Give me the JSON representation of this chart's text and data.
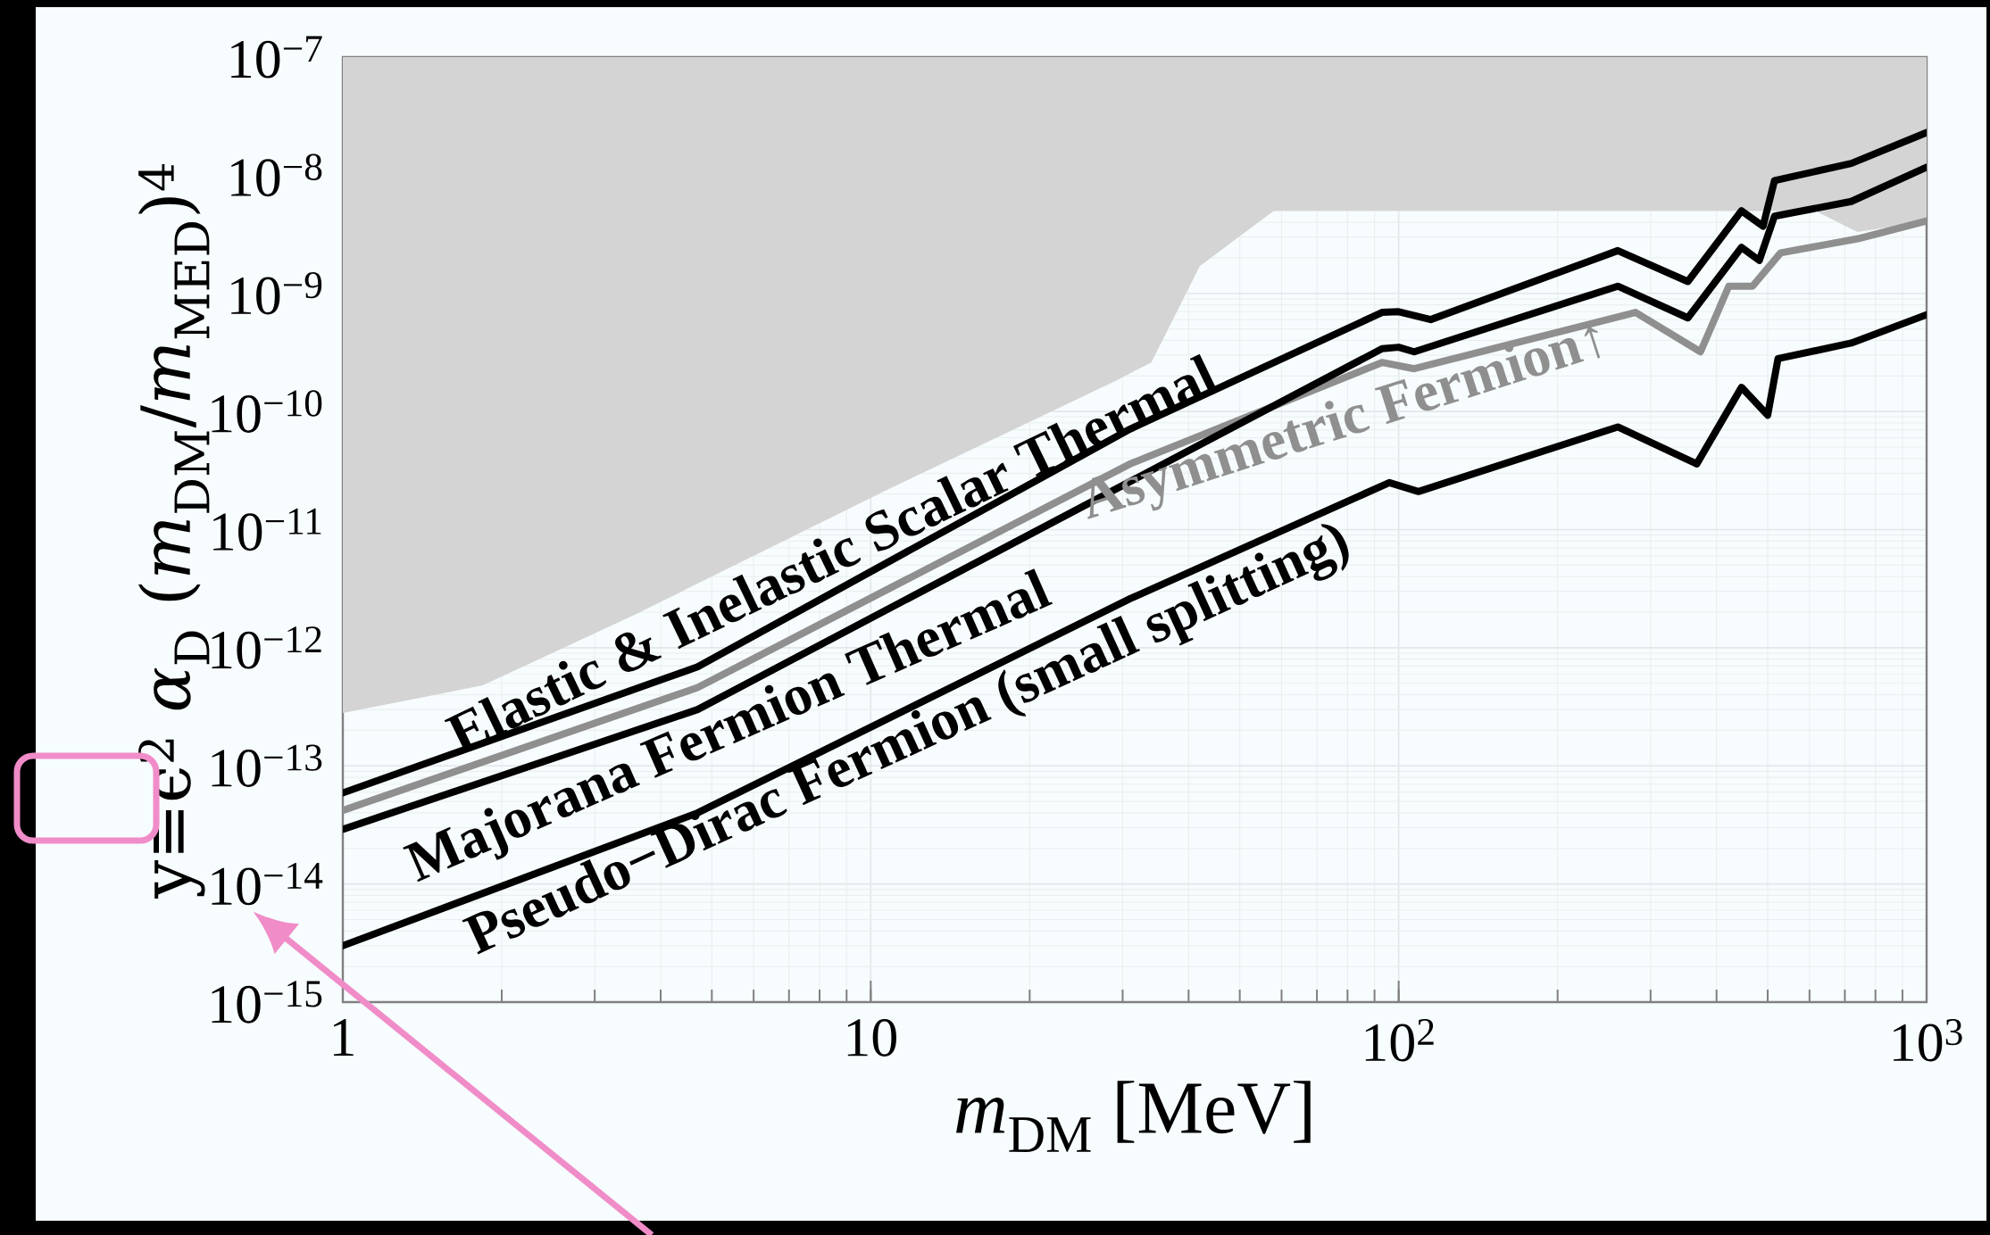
{
  "chart_data": {
    "type": "line",
    "xlabel": "*m*$_{DM}$ [MeV]",
    "ylabel": "y≡ϵ$^{2}$ *α*$_{D}$ (*m*$_{DM}$/*m*$_{MED}$)$^{4}$",
    "log": "xy",
    "grid": true,
    "xlim": [
      1,
      1000
    ],
    "ylim": [
      1e-15,
      1e-07
    ],
    "xticks": [
      1,
      10,
      {
        "value": 100,
        "label": "10$^{2}$"
      },
      {
        "value": 1000,
        "label": "10$^{3}$"
      }
    ],
    "yticks": [
      {
        "value": 1e-15,
        "label": "10$^{−15}$"
      },
      {
        "value": 1e-14,
        "label": "10$^{−14}$"
      },
      {
        "value": 1e-13,
        "label": "10$^{−13}$"
      },
      {
        "value": 1e-12,
        "label": "10$^{−12}$"
      },
      {
        "value": 1e-11,
        "label": "10$^{−11}$"
      },
      {
        "value": 1e-10,
        "label": "10$^{−10}$"
      },
      {
        "value": 1e-09,
        "label": "10$^{−9}$"
      },
      {
        "value": 1e-08,
        "label": "10$^{−8}$"
      },
      {
        "value": 1e-07,
        "label": "10$^{−7}$"
      }
    ],
    "series": [
      {
        "type": "area",
        "color": "#d4d4d4",
        "x": [
          1,
          1.84,
          3.57,
          10.8,
          29,
          34,
          42,
          58,
          615,
          740,
          1000
        ],
        "values": [
          2.8e-13,
          4.8e-13,
          1.9e-12,
          2.2e-11,
          1.8e-10,
          2.6e-10,
          1.7e-09,
          5e-09,
          5e-09,
          3.3e-09,
          4.1e-09
        ]
      },
      {
        "name": "Asymmetric Fermion↑",
        "color": "#8f8f8f",
        "x": [
          1,
          4.7,
          31,
          93,
          107,
          281,
          373,
          422,
          468,
          529,
          741,
          1000
        ],
        "values": [
          4.2e-14,
          4.6e-13,
          3.6e-11,
          2.6e-10,
          2.3e-10,
          6.9e-10,
          3.2e-10,
          1.15e-09,
          1.15e-09,
          2.2e-09,
          2.9e-09,
          4.1e-09
        ]
      },
      {
        "name": "Elastic & Inelastic Scalar Thermal",
        "color": "#000000",
        "x": [
          1,
          4.7,
          31,
          93,
          100,
          115,
          260,
          353,
          446,
          490,
          515,
          720,
          1000
        ],
        "values": [
          5.9e-14,
          6.9e-13,
          7.1e-11,
          6.9e-10,
          7e-10,
          6e-10,
          2.3e-09,
          1.26e-09,
          5e-09,
          3.7e-09,
          9e-09,
          1.26e-08,
          2.3e-08
        ]
      },
      {
        "name": "Majorana Fermion Thermal",
        "color": "#000000",
        "x": [
          1,
          4.7,
          93,
          100,
          107,
          260,
          353,
          446,
          482,
          515,
          720,
          1000
        ],
        "values": [
          2.9e-14,
          3e-13,
          3.4e-10,
          3.5e-10,
          3.2e-10,
          1.15e-09,
          6.2e-10,
          2.45e-09,
          1.9e-09,
          4.5e-09,
          6e-09,
          1.17e-08
        ]
      },
      {
        "name": "Pseudo−Dirac Fermion (small splitting)",
        "color": "#000000",
        "x": [
          1,
          4.7,
          31,
          96,
          109,
          260,
          367,
          446,
          500,
          523,
          720,
          1000
        ],
        "values": [
          3e-15,
          4e-14,
          2.6e-12,
          2.5e-11,
          2.1e-11,
          7.4e-11,
          3.6e-11,
          1.6e-10,
          9.3e-11,
          2.8e-10,
          3.8e-10,
          6.6e-10
        ]
      }
    ]
  }
}
